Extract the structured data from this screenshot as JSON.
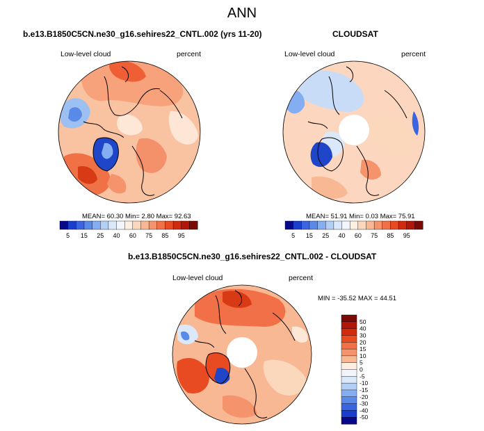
{
  "title": "ANN",
  "panels": [
    {
      "name": "model",
      "title": "b.e13.B1850C5CN.ne30_g16.sehires22_CNTL.002 (yrs 11-20)",
      "left_label": "Low-level cloud",
      "right_label": "percent",
      "stats": "MEAN= 60.30  Min=  2.80  Max= 92.63"
    },
    {
      "name": "obs",
      "title": "CLOUDSAT",
      "left_label": "Low-level cloud",
      "right_label": "percent",
      "stats": "MEAN= 51.91  Min=  0.03  Max= 75.91"
    },
    {
      "name": "diff",
      "title": "b.e13.B1850C5CN.ne30_g16.sehires22_CNTL.002 - CLOUDSAT",
      "left_label": "Low-level cloud",
      "right_label": "percent",
      "stats": "MIN = -35.52 MAX = 44.51"
    }
  ],
  "chart_data": [
    {
      "type": "heatmap",
      "projection": "north-polar-stereographic",
      "title": "b.e13.B1850C5CN.ne30_g16.sehires22_CNTL.002 (yrs 11-20)",
      "variable": "Low-level cloud",
      "units": "percent",
      "mean": 60.3,
      "min": 2.8,
      "max": 92.63,
      "colorbar": {
        "orientation": "horizontal",
        "levels": [
          5,
          10,
          15,
          20,
          25,
          30,
          40,
          50,
          60,
          65,
          70,
          75,
          80,
          85,
          90,
          95
        ],
        "tick_labels": [
          "5",
          "15",
          "25",
          "40",
          "60",
          "75",
          "85",
          "95"
        ],
        "colors": [
          "#08088a",
          "#1a3ecc",
          "#3a64e0",
          "#5a8ae8",
          "#85aef2",
          "#b3cff6",
          "#dbe8fa",
          "#f2f6fc",
          "#fdf0e3",
          "#fbd7bb",
          "#f8b894",
          "#f5946c",
          "#f17048",
          "#e84a22",
          "#d22a0e",
          "#b0160a",
          "#7a0a05"
        ]
      }
    },
    {
      "type": "heatmap",
      "projection": "north-polar-stereographic",
      "title": "CLOUDSAT",
      "variable": "Low-level cloud",
      "units": "percent",
      "mean": 51.91,
      "min": 0.03,
      "max": 75.91,
      "colorbar": {
        "orientation": "horizontal",
        "levels": [
          5,
          10,
          15,
          20,
          25,
          30,
          40,
          50,
          60,
          65,
          70,
          75,
          80,
          85,
          90,
          95
        ],
        "tick_labels": [
          "5",
          "15",
          "25",
          "40",
          "60",
          "75",
          "85",
          "95"
        ],
        "colors": [
          "#08088a",
          "#1a3ecc",
          "#3a64e0",
          "#5a8ae8",
          "#85aef2",
          "#b3cff6",
          "#dbe8fa",
          "#f2f6fc",
          "#fdf0e3",
          "#fbd7bb",
          "#f8b894",
          "#f5946c",
          "#f17048",
          "#e84a22",
          "#d22a0e",
          "#b0160a",
          "#7a0a05"
        ]
      }
    },
    {
      "type": "heatmap",
      "projection": "north-polar-stereographic",
      "title": "b.e13.B1850C5CN.ne30_g16.sehires22_CNTL.002 - CLOUDSAT",
      "variable": "Low-level cloud",
      "units": "percent",
      "min": -35.52,
      "max": 44.51,
      "colorbar": {
        "orientation": "vertical",
        "levels": [
          50,
          40,
          30,
          20,
          15,
          10,
          5,
          0,
          -5,
          -10,
          -15,
          -20,
          -30,
          -40,
          -50
        ],
        "tick_labels": [
          "50",
          "40",
          "30",
          "20",
          "15",
          "10",
          "5",
          "0",
          "-5",
          "-10",
          "-15",
          "-20",
          "-30",
          "-40",
          "-50"
        ],
        "colors": [
          "#7a0a05",
          "#b0160a",
          "#d22a0e",
          "#e84a22",
          "#f17048",
          "#f5946c",
          "#f8b894",
          "#fdf0e3",
          "#f2f6fc",
          "#dbe8fa",
          "#b3cff6",
          "#85aef2",
          "#5a8ae8",
          "#3a64e0",
          "#1a3ecc",
          "#08088a"
        ]
      }
    }
  ]
}
